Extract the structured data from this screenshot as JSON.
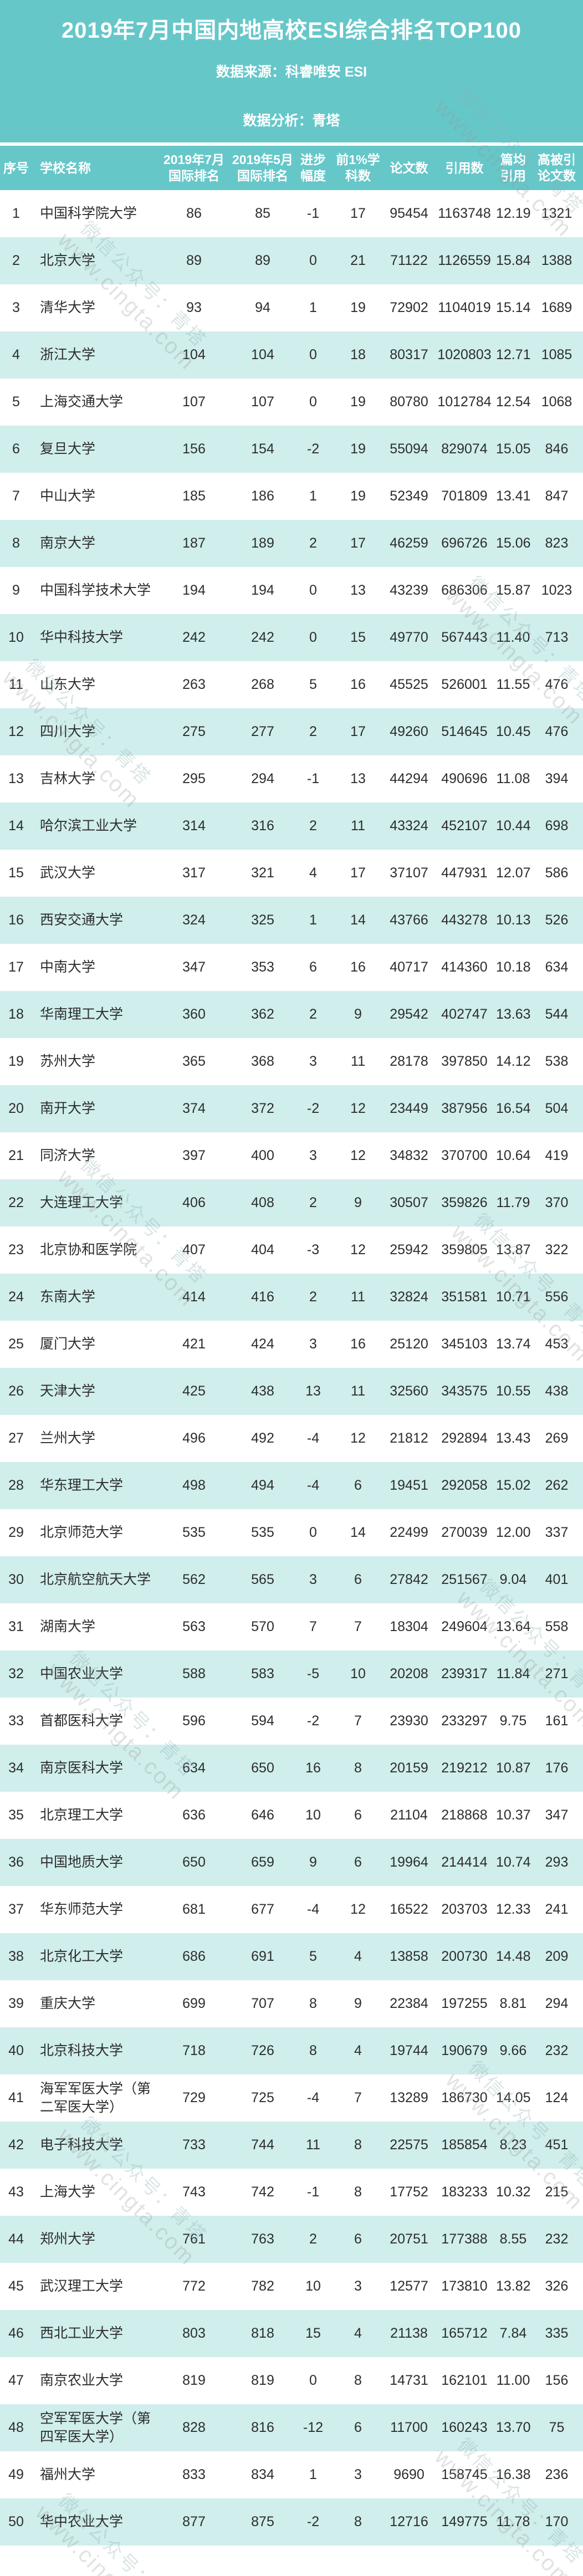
{
  "banner": {
    "title": "2019年7月中国内地高校ESI综合排名TOP100",
    "source_line": "数据来源：科睿唯安 ESI",
    "analysis_line": "数据分析：青塔"
  },
  "colors": {
    "teal": "#66c7c9",
    "row_teal": "#cfeeec",
    "text": "#2d2d2d",
    "header_text": "#ffffff"
  },
  "watermark": {
    "line1": "微信公众号：青塔",
    "line2": "www.cingta.com"
  },
  "table": {
    "columns": [
      {
        "key": "rank",
        "label": "序号"
      },
      {
        "key": "school-name",
        "label": "学校名称"
      },
      {
        "key": "rank-jul-2019",
        "label": "2019年7月\n国际排名"
      },
      {
        "key": "rank-may-2019",
        "label": "2019年5月\n国际排名"
      },
      {
        "key": "progress",
        "label": "进步\n幅度"
      },
      {
        "key": "top1pct-subjects",
        "label": "前1%学\n科数"
      },
      {
        "key": "papers",
        "label": "论文数"
      },
      {
        "key": "citations",
        "label": "引用数"
      },
      {
        "key": "citations-per-paper",
        "label": "篇均\n引用"
      },
      {
        "key": "highly-cited-papers",
        "label": "高被引\n论文数"
      }
    ],
    "rows": [
      [
        1,
        "中国科学院大学",
        86,
        85,
        -1,
        17,
        95454,
        1163748,
        "12.19",
        1321
      ],
      [
        2,
        "北京大学",
        89,
        89,
        0,
        21,
        71122,
        1126559,
        "15.84",
        1388
      ],
      [
        3,
        "清华大学",
        93,
        94,
        1,
        19,
        72902,
        1104019,
        "15.14",
        1689
      ],
      [
        4,
        "浙江大学",
        104,
        104,
        0,
        18,
        80317,
        1020803,
        "12.71",
        1085
      ],
      [
        5,
        "上海交通大学",
        107,
        107,
        0,
        19,
        80780,
        1012784,
        "12.54",
        1068
      ],
      [
        6,
        "复旦大学",
        156,
        154,
        -2,
        19,
        55094,
        829074,
        "15.05",
        846
      ],
      [
        7,
        "中山大学",
        185,
        186,
        1,
        19,
        52349,
        701809,
        "13.41",
        847
      ],
      [
        8,
        "南京大学",
        187,
        189,
        2,
        17,
        46259,
        696726,
        "15.06",
        823
      ],
      [
        9,
        "中国科学技术大学",
        194,
        194,
        0,
        13,
        43239,
        686306,
        "15.87",
        1023
      ],
      [
        10,
        "华中科技大学",
        242,
        242,
        0,
        15,
        49770,
        567443,
        "11.40",
        713
      ],
      [
        11,
        "山东大学",
        263,
        268,
        5,
        16,
        45525,
        526001,
        "11.55",
        476
      ],
      [
        12,
        "四川大学",
        275,
        277,
        2,
        17,
        49260,
        514645,
        "10.45",
        476
      ],
      [
        13,
        "吉林大学",
        295,
        294,
        -1,
        13,
        44294,
        490696,
        "11.08",
        394
      ],
      [
        14,
        "哈尔滨工业大学",
        314,
        316,
        2,
        11,
        43324,
        452107,
        "10.44",
        698
      ],
      [
        15,
        "武汉大学",
        317,
        321,
        4,
        17,
        37107,
        447931,
        "12.07",
        586
      ],
      [
        16,
        "西安交通大学",
        324,
        325,
        1,
        14,
        43766,
        443278,
        "10.13",
        526
      ],
      [
        17,
        "中南大学",
        347,
        353,
        6,
        16,
        40717,
        414360,
        "10.18",
        634
      ],
      [
        18,
        "华南理工大学",
        360,
        362,
        2,
        9,
        29542,
        402747,
        "13.63",
        544
      ],
      [
        19,
        "苏州大学",
        365,
        368,
        3,
        11,
        28178,
        397850,
        "14.12",
        538
      ],
      [
        20,
        "南开大学",
        374,
        372,
        -2,
        12,
        23449,
        387956,
        "16.54",
        504
      ],
      [
        21,
        "同济大学",
        397,
        400,
        3,
        12,
        34832,
        370700,
        "10.64",
        419
      ],
      [
        22,
        "大连理工大学",
        406,
        408,
        2,
        9,
        30507,
        359826,
        "11.79",
        370
      ],
      [
        23,
        "北京协和医学院",
        407,
        404,
        -3,
        12,
        25942,
        359805,
        "13.87",
        322
      ],
      [
        24,
        "东南大学",
        414,
        416,
        2,
        11,
        32824,
        351581,
        "10.71",
        556
      ],
      [
        25,
        "厦门大学",
        421,
        424,
        3,
        16,
        25120,
        345103,
        "13.74",
        453
      ],
      [
        26,
        "天津大学",
        425,
        438,
        13,
        11,
        32560,
        343575,
        "10.55",
        438
      ],
      [
        27,
        "兰州大学",
        496,
        492,
        -4,
        12,
        21812,
        292894,
        "13.43",
        269
      ],
      [
        28,
        "华东理工大学",
        498,
        494,
        -4,
        6,
        19451,
        292058,
        "15.02",
        262
      ],
      [
        29,
        "北京师范大学",
        535,
        535,
        0,
        14,
        22499,
        270039,
        "12.00",
        337
      ],
      [
        30,
        "北京航空航天大学",
        562,
        565,
        3,
        6,
        27842,
        251567,
        "9.04",
        401
      ],
      [
        31,
        "湖南大学",
        563,
        570,
        7,
        7,
        18304,
        249604,
        "13.64",
        558
      ],
      [
        32,
        "中国农业大学",
        588,
        583,
        -5,
        10,
        20208,
        239317,
        "11.84",
        271
      ],
      [
        33,
        "首都医科大学",
        596,
        594,
        -2,
        7,
        23930,
        233297,
        "9.75",
        161
      ],
      [
        34,
        "南京医科大学",
        634,
        650,
        16,
        8,
        20159,
        219212,
        "10.87",
        176
      ],
      [
        35,
        "北京理工大学",
        636,
        646,
        10,
        6,
        21104,
        218868,
        "10.37",
        347
      ],
      [
        36,
        "中国地质大学",
        650,
        659,
        9,
        6,
        19964,
        214414,
        "10.74",
        293
      ],
      [
        37,
        "华东师范大学",
        681,
        677,
        -4,
        12,
        16522,
        203703,
        "12.33",
        241
      ],
      [
        38,
        "北京化工大学",
        686,
        691,
        5,
        4,
        13858,
        200730,
        "14.48",
        209
      ],
      [
        39,
        "重庆大学",
        699,
        707,
        8,
        9,
        22384,
        197255,
        "8.81",
        294
      ],
      [
        40,
        "北京科技大学",
        718,
        726,
        8,
        4,
        19744,
        190679,
        "9.66",
        232
      ],
      [
        41,
        "海军军医大学（第二军医大学）",
        729,
        725,
        -4,
        7,
        13289,
        186730,
        "14.05",
        124
      ],
      [
        42,
        "电子科技大学",
        733,
        744,
        11,
        8,
        22575,
        185854,
        "8.23",
        451
      ],
      [
        43,
        "上海大学",
        743,
        742,
        -1,
        8,
        17752,
        183233,
        "10.32",
        215
      ],
      [
        44,
        "郑州大学",
        761,
        763,
        2,
        6,
        20751,
        177388,
        "8.55",
        232
      ],
      [
        45,
        "武汉理工大学",
        772,
        782,
        10,
        3,
        12577,
        173810,
        "13.82",
        326
      ],
      [
        46,
        "西北工业大学",
        803,
        818,
        15,
        4,
        21138,
        165712,
        "7.84",
        335
      ],
      [
        47,
        "南京农业大学",
        819,
        819,
        0,
        8,
        14731,
        162101,
        "11.00",
        156
      ],
      [
        48,
        "空军军医大学（第四军医大学）",
        828,
        816,
        -12,
        6,
        11700,
        160243,
        "13.70",
        75
      ],
      [
        49,
        "福州大学",
        833,
        834,
        1,
        3,
        9690,
        158745,
        "16.38",
        236
      ],
      [
        50,
        "华中农业大学",
        877,
        875,
        -2,
        8,
        12716,
        149775,
        "11.78",
        170
      ]
    ]
  }
}
